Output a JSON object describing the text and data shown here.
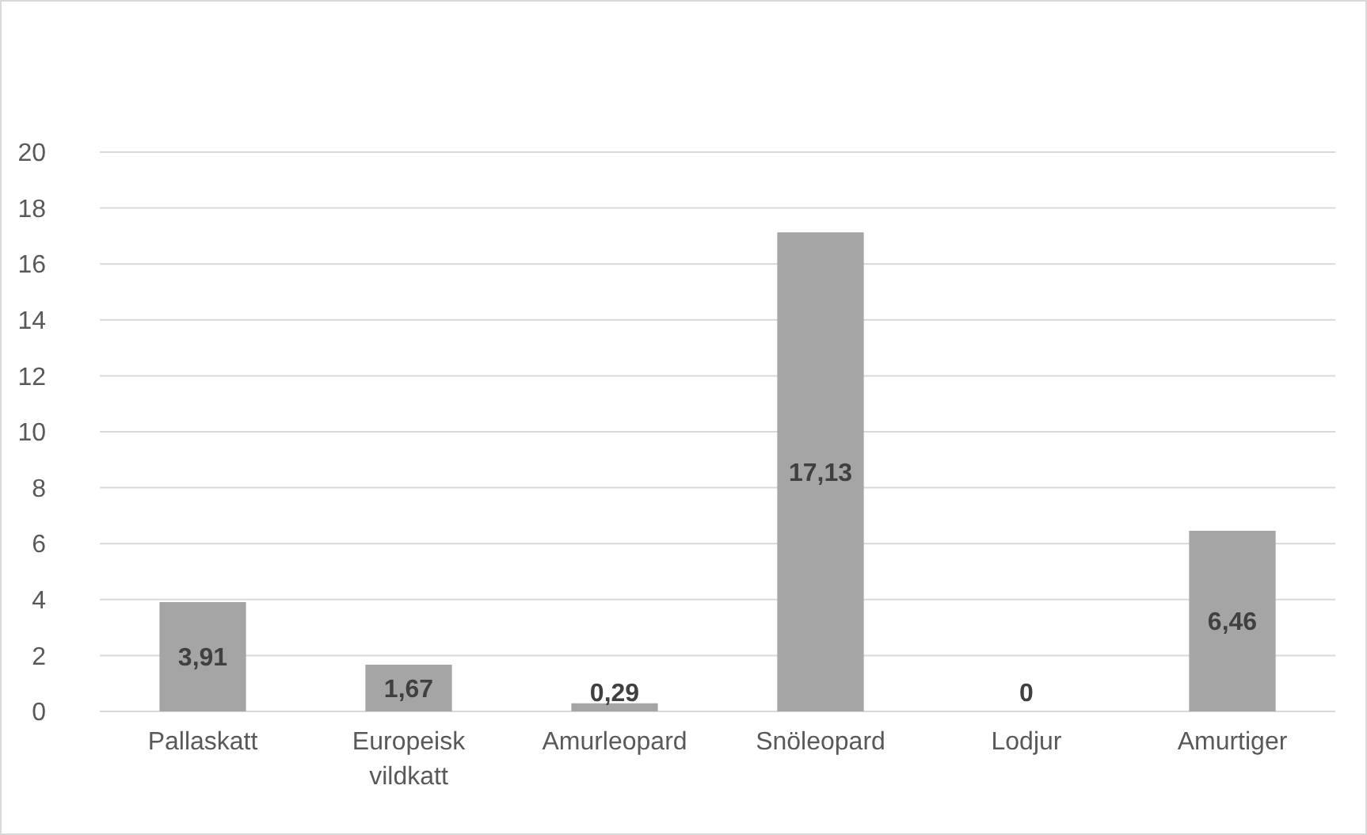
{
  "chart_data": {
    "type": "bar",
    "categories": [
      "Pallaskatt",
      "Europeisk vildkatt",
      "Amurleopard",
      "Snöleopard",
      "Lodjur",
      "Amurtiger"
    ],
    "values": [
      3.91,
      1.67,
      0.29,
      17.13,
      0,
      6.46
    ],
    "value_labels": [
      "3,91",
      "1,67",
      "0,29",
      "17,13",
      "0",
      "6,46"
    ],
    "color": "#a5a5a5",
    "ylim": [
      0,
      20
    ],
    "yticks": [
      0,
      2,
      4,
      6,
      8,
      10,
      12,
      14,
      16,
      18,
      20
    ],
    "grid": "y"
  }
}
